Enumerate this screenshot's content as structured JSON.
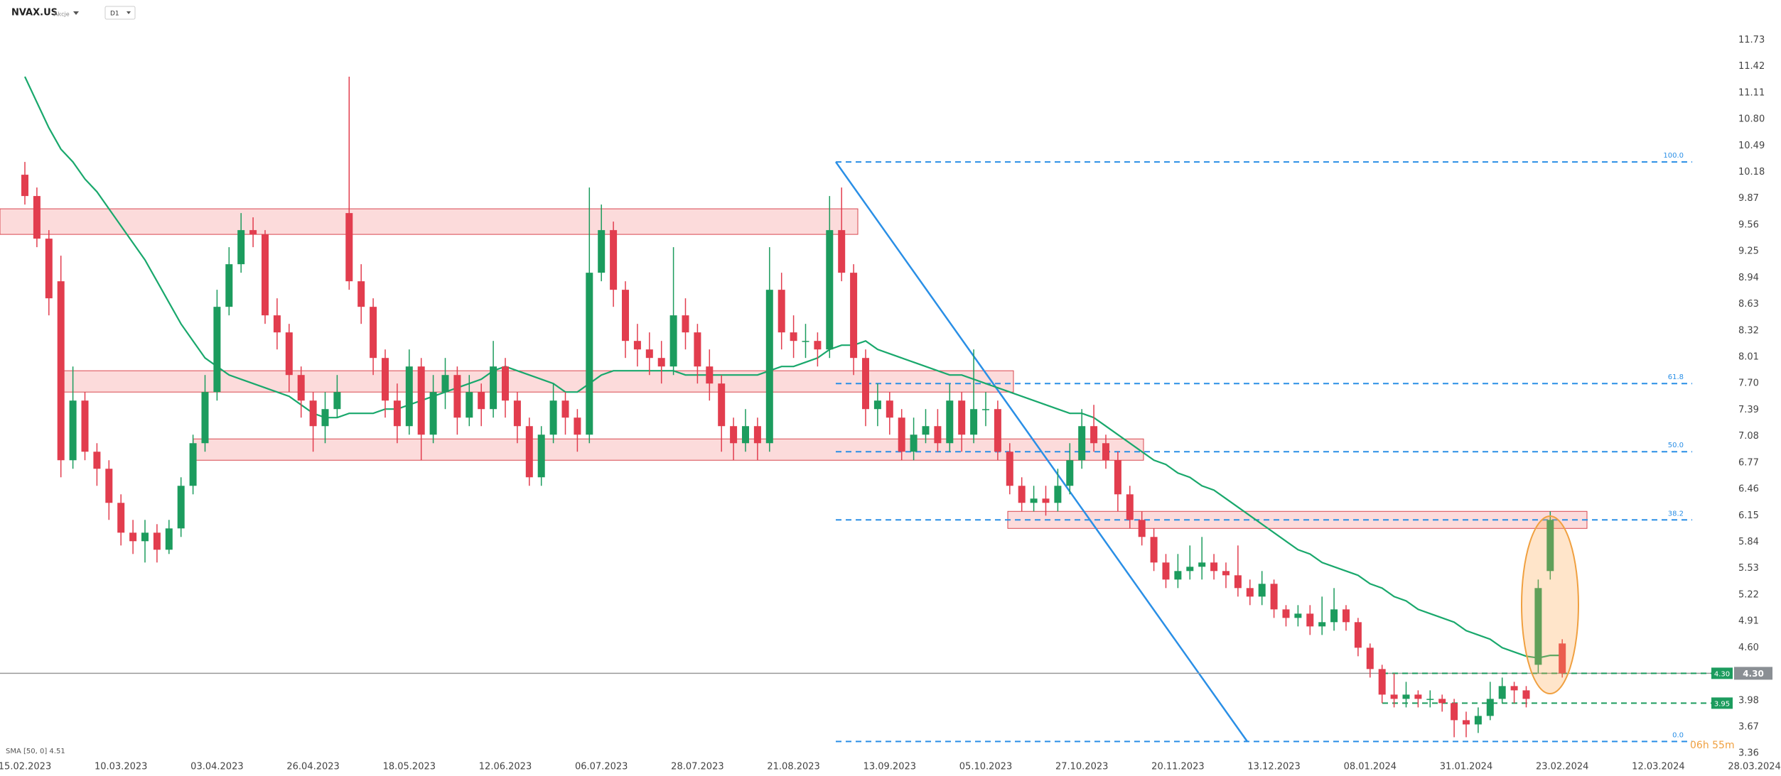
{
  "header": {
    "symbol": "NVAX.US",
    "market": "Akcje",
    "interval": "D1"
  },
  "chart_data": {
    "type": "candlestick",
    "categories": [
      "15.02.2023",
      null,
      null,
      null,
      null,
      null,
      null,
      null,
      "10.03.2023",
      null,
      null,
      null,
      null,
      null,
      null,
      null,
      "03.04.2023",
      null,
      null,
      null,
      null,
      null,
      null,
      null,
      "26.04.2023",
      null,
      null,
      null,
      null,
      null,
      null,
      null,
      "18.05.2023",
      null,
      null,
      null,
      null,
      null,
      null,
      null,
      "12.06.2023",
      null,
      null,
      null,
      null,
      null,
      null,
      null,
      "06.07.2023",
      null,
      null,
      null,
      null,
      null,
      null,
      null,
      "28.07.2023",
      null,
      null,
      null,
      null,
      null,
      null,
      null,
      "21.08.2023",
      null,
      null,
      null,
      null,
      null,
      null,
      null,
      "13.09.2023",
      null,
      null,
      null,
      null,
      null,
      null,
      null,
      "05.10.2023",
      null,
      null,
      null,
      null,
      null,
      null,
      null,
      "27.10.2023",
      null,
      null,
      null,
      null,
      null,
      null,
      null,
      "20.11.2023",
      null,
      null,
      null,
      null,
      null,
      null,
      null,
      "13.12.2023",
      null,
      null,
      null,
      null,
      null,
      null,
      null,
      "08.01.2024",
      null,
      null,
      null,
      null,
      null,
      null,
      null,
      "31.01.2024",
      null,
      null,
      null,
      null,
      null,
      null,
      null,
      "23.02.2024",
      null,
      null,
      null,
      null,
      null,
      null,
      null,
      "12.03.2024",
      null,
      null,
      null,
      null,
      null,
      null,
      null,
      "28.03.2024"
    ],
    "open": [
      10.15,
      9.9,
      9.4,
      8.9,
      6.8,
      7.5,
      6.9,
      6.7,
      6.3,
      5.95,
      5.85,
      5.95,
      5.75,
      6.0,
      6.5,
      7.0,
      7.6,
      8.6,
      9.1,
      9.5,
      9.45,
      8.5,
      8.3,
      7.8,
      7.5,
      7.2,
      7.4,
      9.7,
      8.9,
      8.6,
      8.0,
      7.5,
      7.2,
      7.9,
      7.1,
      7.6,
      7.8,
      7.3,
      7.6,
      7.4,
      7.9,
      7.5,
      7.2,
      6.6,
      7.1,
      7.5,
      7.3,
      7.1,
      9.0,
      9.5,
      8.8,
      8.2,
      8.1,
      8.0,
      7.9,
      8.5,
      8.3,
      7.9,
      7.7,
      7.2,
      7.0,
      7.2,
      7.0,
      8.8,
      8.3,
      8.2,
      8.2,
      8.1,
      9.5,
      9.0,
      8.0,
      7.4,
      7.5,
      7.3,
      6.9,
      7.1,
      7.2,
      7.0,
      7.5,
      7.1,
      7.4,
      7.4,
      6.9,
      6.5,
      6.3,
      6.35,
      6.3,
      6.5,
      6.8,
      7.2,
      7.0,
      6.8,
      6.4,
      6.1,
      5.9,
      5.6,
      5.4,
      5.5,
      5.55,
      5.6,
      5.5,
      5.45,
      5.3,
      5.2,
      5.35,
      5.05,
      4.95,
      5.0,
      4.85,
      4.9,
      5.05,
      4.9,
      4.6,
      4.35,
      4.05,
      4.0,
      4.05,
      4.0,
      4.0,
      3.95,
      3.75,
      3.7,
      3.8,
      4.0,
      4.15,
      4.1,
      4.4,
      5.5,
      4.65,
      null,
      null,
      null,
      null,
      null,
      null,
      null,
      null,
      null,
      null,
      null,
      null,
      null,
      null,
      null,
      null
    ],
    "high": [
      10.3,
      10.0,
      9.5,
      9.2,
      7.9,
      7.6,
      7.0,
      6.8,
      6.4,
      6.1,
      6.1,
      6.05,
      6.1,
      6.6,
      7.1,
      7.8,
      8.8,
      9.3,
      9.7,
      9.65,
      9.5,
      8.7,
      8.4,
      7.9,
      7.6,
      7.6,
      7.8,
      11.3,
      9.1,
      8.7,
      8.1,
      7.7,
      8.1,
      8.0,
      7.8,
      8.0,
      7.9,
      7.8,
      7.7,
      8.2,
      8.0,
      7.6,
      7.3,
      7.2,
      7.7,
      7.6,
      7.4,
      10.0,
      9.8,
      9.6,
      8.9,
      8.4,
      8.3,
      8.2,
      9.3,
      8.7,
      8.4,
      8.1,
      7.8,
      7.3,
      7.4,
      7.3,
      9.3,
      9.0,
      8.5,
      8.4,
      8.3,
      9.9,
      10.0,
      9.1,
      8.1,
      7.7,
      7.6,
      7.4,
      7.3,
      7.4,
      7.4,
      7.7,
      7.6,
      8.1,
      7.6,
      7.5,
      7.0,
      6.6,
      6.5,
      6.5,
      6.7,
      7.0,
      7.4,
      7.45,
      7.1,
      6.9,
      6.5,
      6.2,
      6.0,
      5.7,
      5.7,
      5.8,
      5.9,
      5.7,
      5.6,
      5.8,
      5.4,
      5.5,
      5.4,
      5.1,
      5.1,
      5.1,
      5.2,
      5.3,
      5.1,
      4.95,
      4.65,
      4.4,
      4.3,
      4.2,
      4.1,
      4.1,
      4.05,
      4.0,
      3.85,
      3.9,
      4.2,
      4.25,
      4.2,
      4.15,
      5.4,
      6.2,
      4.7,
      null,
      null,
      null,
      null,
      null,
      null,
      null,
      null,
      null,
      null,
      null,
      null,
      null,
      null,
      null,
      null
    ],
    "low": [
      9.8,
      9.3,
      8.5,
      6.6,
      6.7,
      6.8,
      6.5,
      6.1,
      5.8,
      5.7,
      5.6,
      5.6,
      5.7,
      5.9,
      6.4,
      6.9,
      7.5,
      8.5,
      9.0,
      9.3,
      8.4,
      8.1,
      7.6,
      7.3,
      6.9,
      7.0,
      7.3,
      8.8,
      8.4,
      7.8,
      7.3,
      7.0,
      7.1,
      6.8,
      7.0,
      7.4,
      7.1,
      7.2,
      7.2,
      7.3,
      7.3,
      7.0,
      6.5,
      6.5,
      7.0,
      7.1,
      6.9,
      7.0,
      8.9,
      8.6,
      8.0,
      7.9,
      7.8,
      7.7,
      7.8,
      8.1,
      7.7,
      7.5,
      6.9,
      6.8,
      6.9,
      6.8,
      6.9,
      8.1,
      8.0,
      8.0,
      7.9,
      8.0,
      8.9,
      7.8,
      7.2,
      7.2,
      7.1,
      6.8,
      6.8,
      7.0,
      6.9,
      6.9,
      6.9,
      7.0,
      7.2,
      6.8,
      6.4,
      6.2,
      6.2,
      6.15,
      6.2,
      6.4,
      6.7,
      6.9,
      6.7,
      6.2,
      6.0,
      5.8,
      5.5,
      5.3,
      5.3,
      5.4,
      5.4,
      5.4,
      5.3,
      5.2,
      5.1,
      5.1,
      4.95,
      4.85,
      4.85,
      4.75,
      4.75,
      4.8,
      4.8,
      4.5,
      4.25,
      3.95,
      3.9,
      3.9,
      3.9,
      3.9,
      3.85,
      3.55,
      3.55,
      3.6,
      3.75,
      3.95,
      3.95,
      3.9,
      4.3,
      5.4,
      4.25,
      null,
      null,
      null,
      null,
      null,
      null,
      null,
      null,
      null,
      null,
      null,
      null,
      null,
      null,
      null,
      null
    ],
    "close": [
      9.9,
      9.4,
      8.7,
      6.8,
      7.5,
      6.9,
      6.7,
      6.3,
      5.95,
      5.85,
      5.95,
      5.75,
      6.0,
      6.5,
      7.0,
      7.6,
      8.6,
      9.1,
      9.5,
      9.45,
      8.5,
      8.3,
      7.8,
      7.5,
      7.2,
      7.4,
      7.6,
      8.9,
      8.6,
      8.0,
      7.5,
      7.2,
      7.9,
      7.1,
      7.6,
      7.8,
      7.3,
      7.6,
      7.4,
      7.9,
      7.5,
      7.2,
      6.6,
      7.1,
      7.5,
      7.3,
      7.1,
      9.0,
      9.5,
      8.8,
      8.2,
      8.1,
      8.0,
      7.9,
      8.5,
      8.3,
      7.9,
      7.7,
      7.2,
      7.0,
      7.2,
      7.0,
      8.8,
      8.3,
      8.2,
      8.2,
      8.1,
      9.5,
      9.0,
      8.0,
      7.4,
      7.5,
      7.3,
      6.9,
      7.1,
      7.2,
      7.0,
      7.5,
      7.1,
      7.4,
      7.4,
      6.9,
      6.5,
      6.3,
      6.35,
      6.3,
      6.5,
      6.8,
      7.2,
      7.0,
      6.8,
      6.4,
      6.1,
      5.9,
      5.6,
      5.4,
      5.5,
      5.55,
      5.6,
      5.5,
      5.45,
      5.3,
      5.2,
      5.35,
      5.05,
      4.95,
      5.0,
      4.85,
      4.9,
      5.05,
      4.9,
      4.6,
      4.35,
      4.05,
      4.0,
      4.05,
      4.0,
      4.0,
      3.95,
      3.75,
      3.7,
      3.8,
      4.0,
      4.15,
      4.1,
      4.0,
      5.3,
      6.1,
      4.3,
      null,
      null,
      null,
      null,
      null,
      null,
      null,
      null,
      null,
      null,
      null,
      null,
      null,
      null,
      null,
      null
    ],
    "up_color": "#1c9c5e",
    "down_color": "#e23d4e",
    "ylim": [
      3.32,
      12.2
    ],
    "yticks": [
      11.73,
      11.42,
      11.11,
      {
        "value": 10.8,
        "label": "10.80"
      },
      10.49,
      10.18,
      9.87,
      9.56,
      9.25,
      8.94,
      8.63,
      8.32,
      8.01,
      {
        "value": 7.7,
        "label": "7.70"
      },
      7.39,
      7.08,
      6.77,
      6.46,
      6.15,
      5.84,
      5.53,
      5.22,
      4.91,
      {
        "value": 4.6,
        "label": "4.60"
      },
      3.98,
      3.67,
      3.36
    ],
    "sma": {
      "label": "SMA [50, 0] 4.51",
      "color": "#19a86c",
      "values": [
        11.3,
        11.0,
        10.7,
        10.45,
        10.3,
        10.1,
        9.95,
        9.75,
        9.55,
        9.35,
        9.15,
        8.9,
        8.65,
        8.4,
        8.2,
        8.0,
        7.9,
        7.8,
        7.75,
        7.7,
        7.65,
        7.6,
        7.55,
        7.45,
        7.35,
        7.3,
        7.3,
        7.35,
        7.35,
        7.35,
        7.4,
        7.4,
        7.45,
        7.5,
        7.55,
        7.6,
        7.65,
        7.7,
        7.75,
        7.85,
        7.9,
        7.85,
        7.8,
        7.75,
        7.7,
        7.6,
        7.6,
        7.7,
        7.8,
        7.85,
        7.85,
        7.85,
        7.85,
        7.85,
        7.85,
        7.8,
        7.8,
        7.8,
        7.8,
        7.8,
        7.8,
        7.8,
        7.85,
        7.9,
        7.9,
        7.95,
        8.0,
        8.1,
        8.15,
        8.15,
        8.2,
        8.1,
        8.05,
        8.0,
        7.95,
        7.9,
        7.85,
        7.8,
        7.8,
        7.75,
        7.7,
        7.65,
        7.6,
        7.55,
        7.5,
        7.45,
        7.4,
        7.35,
        7.35,
        7.3,
        7.2,
        7.1,
        7.0,
        6.9,
        6.8,
        6.75,
        6.65,
        6.6,
        6.5,
        6.45,
        6.35,
        6.25,
        6.15,
        6.05,
        5.95,
        5.85,
        5.75,
        5.7,
        5.6,
        5.55,
        5.5,
        5.45,
        5.35,
        5.3,
        5.2,
        5.15,
        5.05,
        5.0,
        4.95,
        4.9,
        4.8,
        4.75,
        4.7,
        4.6,
        4.55,
        4.5,
        4.48,
        4.51,
        4.51,
        null,
        null,
        null,
        null,
        null,
        null,
        null,
        null,
        null,
        null,
        null,
        null,
        null,
        null,
        null,
        null
      ]
    },
    "fib_color": "#2a8fe6",
    "fib_levels": [
      {
        "value": 10.3,
        "label": "100.0"
      },
      {
        "value": 7.7,
        "label": "61.8"
      },
      {
        "value": 6.9,
        "label": "50.0"
      },
      {
        "value": 6.1,
        "label": "38.2"
      },
      {
        "value": 3.5,
        "label": "0.0"
      }
    ],
    "zones": [
      [
        9.45,
        9.75
      ],
      [
        7.6,
        7.85
      ],
      [
        6.8,
        7.05
      ],
      [
        6.0,
        6.2
      ]
    ],
    "price_lines": [
      {
        "value": 4.3,
        "label": "4.30"
      },
      {
        "value": 3.95,
        "label": "3.95"
      }
    ],
    "timer": "06h 55m"
  }
}
